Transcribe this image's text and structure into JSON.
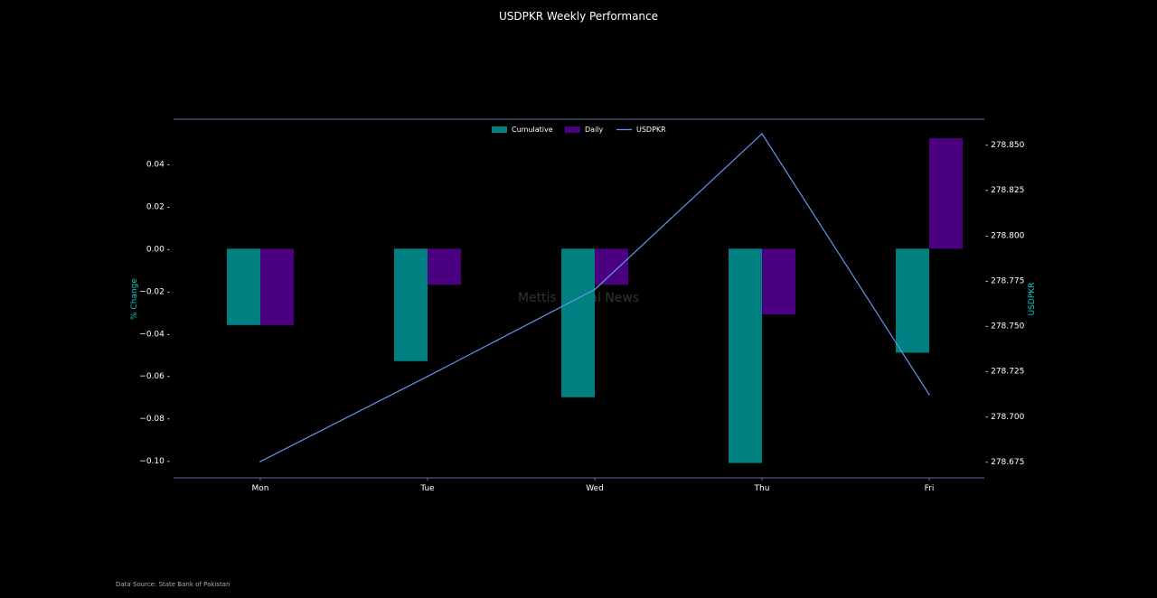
{
  "chart_data": {
    "type": "bar",
    "title": "USDPKR Weekly Performance",
    "categories": [
      "Mon",
      "Tue",
      "Wed",
      "Thu",
      "Fri"
    ],
    "series": [
      {
        "name": "Cumulative",
        "type": "bar",
        "axis": "left",
        "color": "#008080",
        "values": [
          -0.036,
          -0.053,
          -0.07,
          -0.101,
          -0.049
        ]
      },
      {
        "name": "Daily",
        "type": "bar",
        "axis": "left",
        "color": "#4b0082",
        "values": [
          -0.036,
          -0.017,
          -0.017,
          -0.031,
          0.052
        ]
      },
      {
        "name": "USDPKR",
        "type": "line",
        "axis": "right",
        "color": "#6495ed",
        "values": [
          278.675,
          278.722,
          278.77,
          278.856,
          278.712
        ]
      }
    ],
    "ylabel": "% Change",
    "y2label": "USDPKR",
    "ylim": [
      -0.108,
      0.061
    ],
    "y2lim": [
      278.666,
      278.864
    ],
    "yticks": [
      {
        "value": 0.04,
        "label": "0.04"
      },
      {
        "value": 0.02,
        "label": "0.02"
      },
      {
        "value": 0.0,
        "label": "0.00"
      },
      {
        "value": -0.02,
        "label": "−0.02"
      },
      {
        "value": -0.04,
        "label": "−0.04"
      },
      {
        "value": -0.06,
        "label": "−0.06"
      },
      {
        "value": -0.08,
        "label": "−0.08"
      },
      {
        "value": -0.1,
        "label": "−0.10"
      }
    ],
    "y2ticks": [
      {
        "value": 278.85,
        "label": "278.850"
      },
      {
        "value": 278.825,
        "label": "278.825"
      },
      {
        "value": 278.8,
        "label": "278.800"
      },
      {
        "value": 278.775,
        "label": "278.775"
      },
      {
        "value": 278.75,
        "label": "278.750"
      },
      {
        "value": 278.725,
        "label": "278.725"
      },
      {
        "value": 278.7,
        "label": "278.700"
      },
      {
        "value": 278.675,
        "label": "278.675"
      }
    ],
    "legend_position": "top-center",
    "grid": false,
    "axis_label_color": "#00ced1",
    "spine_color": "#6070a0",
    "watermark": "Mettis Global News",
    "source": "Data Source: State Bank of Pakistan"
  }
}
